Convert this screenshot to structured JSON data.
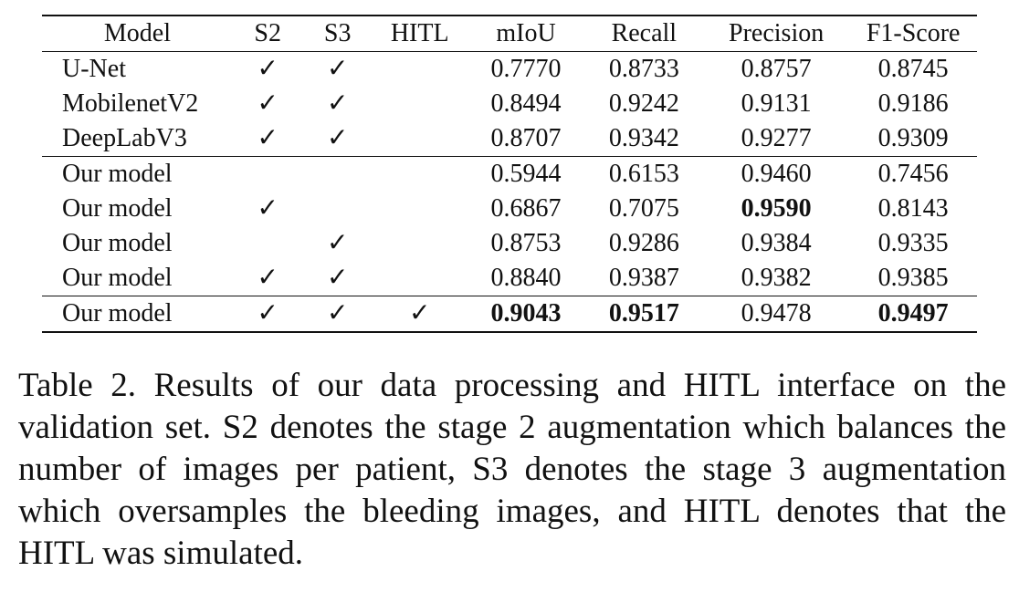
{
  "table": {
    "headers": [
      "Model",
      "S2",
      "S3",
      "HITL",
      "mIoU",
      "Recall",
      "Precision",
      "F1-Score"
    ],
    "groups": [
      [
        [
          "U-Net",
          "✓",
          "✓",
          "",
          "0.7770",
          "0.8733",
          "0.8757",
          "0.8745"
        ],
        [
          "MobilenetV2",
          "✓",
          "✓",
          "",
          "0.8494",
          "0.9242",
          "0.9131",
          "0.9186"
        ],
        [
          "DeepLabV3",
          "✓",
          "✓",
          "",
          "0.8707",
          "0.9342",
          "0.9277",
          "0.9309"
        ]
      ],
      [
        [
          "Our model",
          "",
          "",
          "",
          "0.5944",
          "0.6153",
          "0.9460",
          "0.7456"
        ],
        [
          "Our model",
          "✓",
          "",
          "",
          "0.6867",
          "0.7075",
          "0.9590",
          "0.8143"
        ],
        [
          "Our model",
          "",
          "✓",
          "",
          "0.8753",
          "0.9286",
          "0.9384",
          "0.9335"
        ],
        [
          "Our model",
          "✓",
          "✓",
          "",
          "0.8840",
          "0.9387",
          "0.9382",
          "0.9385"
        ]
      ],
      [
        [
          "Our model",
          "✓",
          "✓",
          "✓",
          "0.9043",
          "0.9517",
          "0.9478",
          "0.9497"
        ]
      ]
    ]
  },
  "caption": "Table 2. Results of our data processing and HITL interface on the validation set.  S2 denotes the stage 2 augmentation which balances the number of images per patient, S3 denotes the stage 3 augmentation which oversamples the bleeding images, and HITL denotes that the HITL was simulated."
}
